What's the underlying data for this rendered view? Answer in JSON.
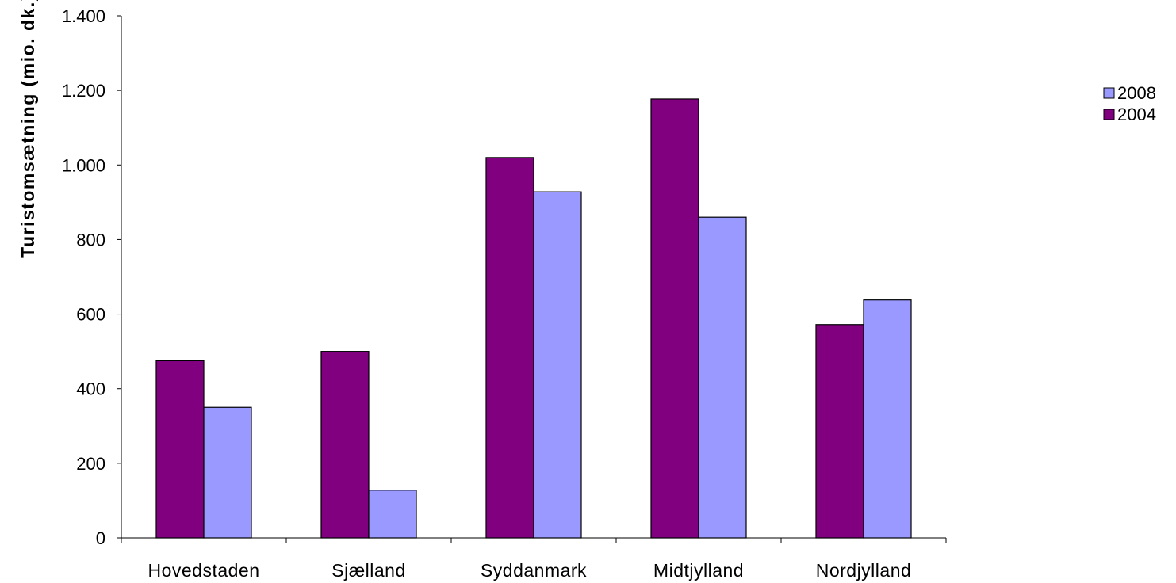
{
  "chart_data": {
    "type": "bar",
    "title": "",
    "xlabel": "",
    "ylabel": "Turistomsætning (mio. dk.)",
    "categories": [
      "Hovedstaden",
      "Sjælland",
      "Syddanmark",
      "Midtjylland",
      "Nordjylland"
    ],
    "series": [
      {
        "name": "2004",
        "color": "#800080",
        "values": [
          475,
          500,
          1020,
          1177,
          572
        ]
      },
      {
        "name": "2008",
        "color": "#9999ff",
        "values": [
          350,
          128,
          928,
          860,
          638
        ]
      }
    ],
    "ylim": [
      0,
      1400
    ],
    "yticks": [
      0,
      200,
      400,
      600,
      800,
      1000,
      1200,
      1400
    ],
    "ytick_labels": [
      "0",
      "200",
      "400",
      "600",
      "800",
      "1.000",
      "1.200",
      "1.400"
    ],
    "grid": false,
    "legend": {
      "position": "right",
      "entries": [
        {
          "label": "2008",
          "color": "#9999ff"
        },
        {
          "label": "2004",
          "color": "#800080"
        }
      ]
    }
  }
}
